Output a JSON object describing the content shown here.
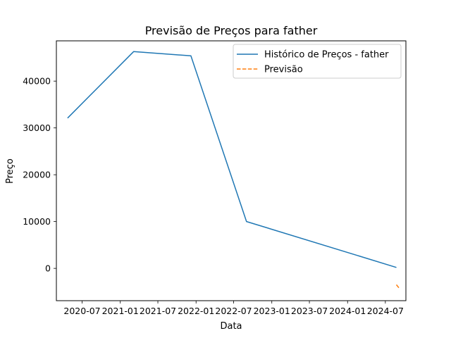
{
  "chart_data": {
    "type": "line",
    "title": "Previsão de Preços para father",
    "xlabel": "Data",
    "ylabel": "Preço",
    "x_ticks": [
      "2020-07",
      "2021-01",
      "2021-07",
      "2022-01",
      "2022-07",
      "2023-01",
      "2023-07",
      "2024-01",
      "2024-07"
    ],
    "y_ticks": [
      0,
      10000,
      20000,
      30000,
      40000
    ],
    "xlim": [
      "2020-02-28",
      "2024-10-08"
    ],
    "ylim": [
      -6900,
      48600
    ],
    "grid": false,
    "legend_position": "top-right",
    "series": [
      {
        "name": "Histórico de Preços - father",
        "color": "#1f77b4",
        "style": "solid",
        "points": [
          {
            "x": "2020-04-22",
            "y": 32100
          },
          {
            "x": "2021-03-06",
            "y": 46300
          },
          {
            "x": "2021-12-07",
            "y": 45400
          },
          {
            "x": "2022-09-01",
            "y": 10000
          },
          {
            "x": "2024-08-23",
            "y": 200
          }
        ]
      },
      {
        "name": "Previsão",
        "color": "#ff7f0e",
        "style": "dashed",
        "points": [
          {
            "x": "2024-08-23",
            "y": -3500
          },
          {
            "x": "2024-09-07",
            "y": -4300
          }
        ]
      }
    ]
  }
}
